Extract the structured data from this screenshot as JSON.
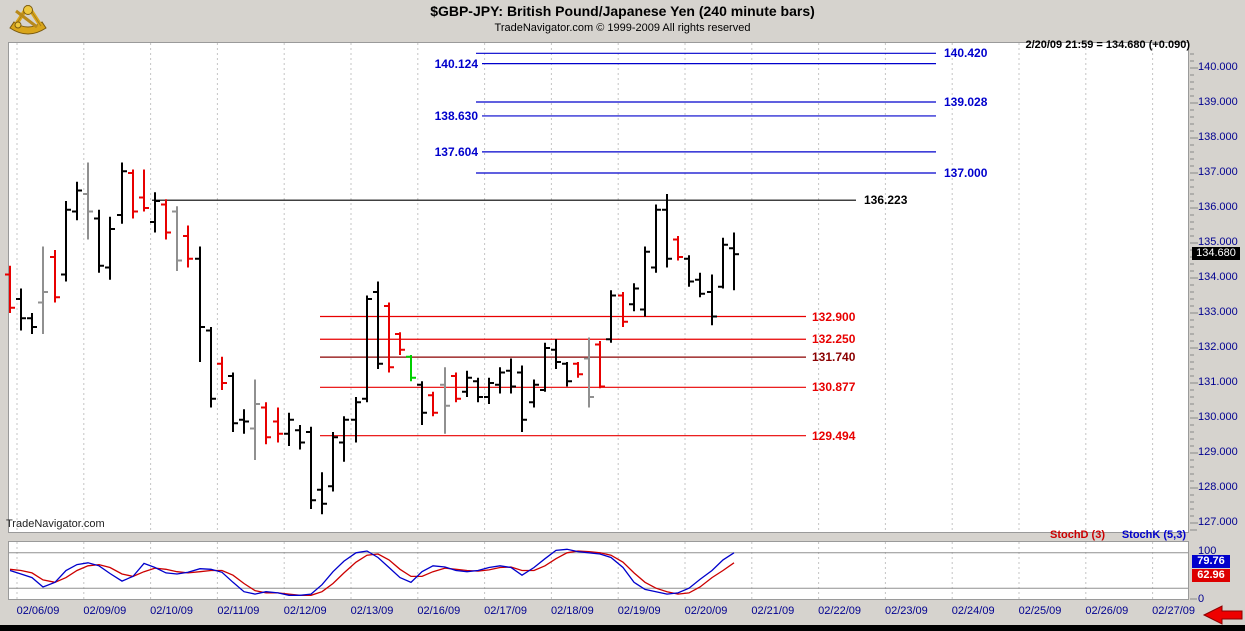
{
  "header": {
    "title": "$GBP-JPY:  British Pound/Japanese Yen  (240 minute bars)",
    "subtitle": "TradeNavigator.com © 1999-2009 All rights reserved",
    "logo_icon": "gold-sextant"
  },
  "quote": {
    "text": "2/20/09 21:59 = 134.680 (+0.090)"
  },
  "watermark": "TradeNavigator.com",
  "price_axis": {
    "labels": [
      "140.000",
      "139.000",
      "138.000",
      "137.000",
      "136.000",
      "135.000",
      "134.000",
      "133.000",
      "132.000",
      "131.000",
      "130.000",
      "129.000",
      "128.000",
      "127.000"
    ],
    "current": "134.680",
    "current_bg": "#000000",
    "text_color": "#000090"
  },
  "date_axis": {
    "labels": [
      "02/06/09",
      "02/09/09",
      "02/10/09",
      "02/11/09",
      "02/12/09",
      "02/13/09",
      "02/16/09",
      "02/17/09",
      "02/18/09",
      "02/19/09",
      "02/20/09",
      "02/21/09",
      "02/22/09",
      "02/23/09",
      "02/24/09",
      "02/25/09",
      "02/26/09",
      "02/27/09"
    ]
  },
  "stoch": {
    "d_label": "StochD (3)",
    "k_label": "StochK (5,3)",
    "scale_top": "100",
    "scale_bottom": "0",
    "k_value": "79.76",
    "d_value": "62.96",
    "k_color": "#0000cc",
    "d_color": "#cc0000",
    "overbought": 80,
    "oversold": 20
  },
  "arrow": {
    "name": "red-left-arrow",
    "color": "#ee0000"
  },
  "chart_data": {
    "type": "ohlc-bars",
    "symbol": "$GBP-JPY",
    "interval": "240 minute",
    "title": "$GBP-JPY: British Pound/Japanese Yen (240 minute bars)",
    "y_range": [
      126.8,
      140.8
    ],
    "y_tick_step": 1.0,
    "y_minor_step": 0.2,
    "grid": "vertical-dashed",
    "last_price": 134.68,
    "last_change": 0.09,
    "last_time": "2/20/09 21:59",
    "levels": [
      {
        "label": "140.420",
        "value": 140.42,
        "color": "#0000cc",
        "x1": 476,
        "x2": 936,
        "lx": 944,
        "align": "left"
      },
      {
        "label": "140.124",
        "value": 140.124,
        "color": "#0000cc",
        "x1": 482,
        "x2": 936,
        "lx": 478,
        "align": "right"
      },
      {
        "label": "139.028",
        "value": 139.028,
        "color": "#0000cc",
        "x1": 476,
        "x2": 936,
        "lx": 944,
        "align": "left"
      },
      {
        "label": "138.630",
        "value": 138.63,
        "color": "#0000cc",
        "x1": 482,
        "x2": 936,
        "lx": 478,
        "align": "right"
      },
      {
        "label": "137.604",
        "value": 137.604,
        "color": "#0000cc",
        "x1": 482,
        "x2": 936,
        "lx": 478,
        "align": "right"
      },
      {
        "label": "137.000",
        "value": 137.0,
        "color": "#0000cc",
        "x1": 476,
        "x2": 936,
        "lx": 944,
        "align": "left"
      },
      {
        "label": "136.223",
        "value": 136.223,
        "color": "#000000",
        "x1": 152,
        "x2": 856,
        "lx": 864,
        "align": "left"
      },
      {
        "label": "132.900",
        "value": 132.9,
        "color": "#e80000",
        "x1": 320,
        "x2": 806,
        "lx": 812,
        "align": "left"
      },
      {
        "label": "132.250",
        "value": 132.25,
        "color": "#e80000",
        "x1": 320,
        "x2": 806,
        "lx": 812,
        "align": "left"
      },
      {
        "label": "131.740",
        "value": 131.74,
        "color": "#8b0000",
        "x1": 320,
        "x2": 806,
        "lx": 812,
        "align": "left"
      },
      {
        "label": "130.877",
        "value": 130.877,
        "color": "#e80000",
        "x1": 320,
        "x2": 806,
        "lx": 812,
        "align": "left"
      },
      {
        "label": "129.494",
        "value": 129.494,
        "color": "#e80000",
        "x1": 320,
        "x2": 806,
        "lx": 812,
        "align": "left"
      }
    ],
    "bar_colors": {
      "black": "#000000",
      "red": "#e80000",
      "gray": "#909090",
      "green": "#00cf00"
    },
    "bars": [
      [
        10,
        134.1,
        134.35,
        133.0,
        133.15,
        "red"
      ],
      [
        21,
        133.4,
        133.7,
        132.5,
        132.85,
        "black"
      ],
      [
        32,
        132.85,
        133.0,
        132.4,
        132.6,
        "black"
      ],
      [
        43,
        133.3,
        134.9,
        132.4,
        133.6,
        "gray"
      ],
      [
        55,
        134.6,
        134.8,
        133.3,
        133.45,
        "red"
      ],
      [
        66,
        134.1,
        136.2,
        133.9,
        135.95,
        "black"
      ],
      [
        77,
        135.9,
        136.75,
        135.65,
        136.5,
        "black"
      ],
      [
        88,
        136.4,
        137.3,
        135.1,
        135.9,
        "gray"
      ],
      [
        99,
        135.7,
        135.95,
        134.15,
        134.35,
        "black"
      ],
      [
        110,
        134.3,
        135.75,
        133.95,
        135.4,
        "black"
      ],
      [
        122,
        135.8,
        137.3,
        135.55,
        137.05,
        "black"
      ],
      [
        133,
        137.0,
        137.1,
        135.7,
        135.9,
        "red"
      ],
      [
        144,
        136.3,
        137.1,
        135.9,
        136.0,
        "red"
      ],
      [
        155,
        135.6,
        136.45,
        135.3,
        136.2,
        "black"
      ],
      [
        166,
        136.1,
        136.25,
        135.1,
        135.3,
        "red"
      ],
      [
        177,
        135.9,
        136.05,
        134.2,
        134.5,
        "gray"
      ],
      [
        188,
        135.2,
        135.5,
        134.3,
        134.55,
        "red"
      ],
      [
        200,
        134.55,
        134.9,
        131.6,
        132.6,
        "black"
      ],
      [
        211,
        132.5,
        132.6,
        130.3,
        130.55,
        "black"
      ],
      [
        222,
        131.55,
        131.75,
        130.8,
        131.0,
        "red"
      ],
      [
        233,
        131.2,
        131.3,
        129.6,
        129.85,
        "black"
      ],
      [
        244,
        129.95,
        130.25,
        129.55,
        129.9,
        "black"
      ],
      [
        255,
        129.7,
        131.1,
        128.8,
        130.4,
        "gray"
      ],
      [
        266,
        130.3,
        130.45,
        129.25,
        129.45,
        "red"
      ],
      [
        278,
        129.9,
        130.3,
        129.3,
        129.55,
        "red"
      ],
      [
        289,
        129.55,
        130.15,
        129.2,
        129.95,
        "black"
      ],
      [
        300,
        129.65,
        129.8,
        129.1,
        129.3,
        "black"
      ],
      [
        311,
        129.6,
        129.75,
        127.4,
        127.65,
        "black"
      ],
      [
        322,
        127.95,
        128.45,
        127.25,
        127.55,
        "black"
      ],
      [
        333,
        128.05,
        129.6,
        127.9,
        129.45,
        "black"
      ],
      [
        344,
        129.3,
        130.05,
        128.75,
        129.95,
        "black"
      ],
      [
        356,
        129.95,
        130.6,
        129.3,
        130.45,
        "black"
      ],
      [
        367,
        130.55,
        133.5,
        130.45,
        133.4,
        "black"
      ],
      [
        378,
        133.6,
        133.9,
        131.4,
        131.55,
        "black"
      ],
      [
        389,
        133.2,
        133.3,
        131.3,
        131.45,
        "red"
      ],
      [
        400,
        132.4,
        132.45,
        131.8,
        131.95,
        "red"
      ],
      [
        411,
        131.75,
        131.8,
        131.05,
        131.15,
        "green"
      ],
      [
        422,
        130.95,
        131.05,
        129.8,
        130.15,
        "black"
      ],
      [
        433,
        130.65,
        130.75,
        130.05,
        130.15,
        "red"
      ],
      [
        445,
        130.95,
        131.45,
        129.55,
        130.35,
        "gray"
      ],
      [
        456,
        131.2,
        131.3,
        130.45,
        130.55,
        "red"
      ],
      [
        467,
        130.75,
        131.35,
        130.6,
        131.15,
        "black"
      ],
      [
        478,
        131.05,
        131.15,
        130.45,
        130.6,
        "black"
      ],
      [
        489,
        130.6,
        131.15,
        130.4,
        131.0,
        "black"
      ],
      [
        500,
        130.95,
        131.45,
        130.7,
        131.3,
        "black"
      ],
      [
        511,
        131.35,
        131.7,
        130.7,
        130.9,
        "black"
      ],
      [
        522,
        131.3,
        131.5,
        129.6,
        129.95,
        "black"
      ],
      [
        534,
        130.45,
        131.1,
        130.3,
        130.95,
        "black"
      ],
      [
        545,
        130.8,
        132.15,
        130.75,
        132.0,
        "black"
      ],
      [
        556,
        131.95,
        132.25,
        131.4,
        131.6,
        "black"
      ],
      [
        567,
        131.55,
        131.6,
        130.9,
        131.05,
        "black"
      ],
      [
        578,
        131.55,
        131.6,
        131.15,
        131.25,
        "red"
      ],
      [
        589,
        131.7,
        132.3,
        130.3,
        130.6,
        "gray"
      ],
      [
        600,
        132.1,
        132.2,
        130.85,
        130.9,
        "red"
      ],
      [
        611,
        132.25,
        133.65,
        132.15,
        133.5,
        "black"
      ],
      [
        623,
        133.5,
        133.6,
        132.6,
        132.75,
        "red"
      ],
      [
        634,
        133.25,
        133.85,
        133.05,
        133.7,
        "black"
      ],
      [
        645,
        133.1,
        134.9,
        132.9,
        134.75,
        "black"
      ],
      [
        656,
        134.3,
        136.1,
        134.15,
        135.95,
        "black"
      ],
      [
        667,
        135.95,
        136.4,
        134.3,
        134.55,
        "black"
      ],
      [
        678,
        135.1,
        135.2,
        134.5,
        134.6,
        "red"
      ],
      [
        689,
        134.55,
        134.65,
        133.75,
        133.9,
        "black"
      ],
      [
        700,
        133.95,
        134.15,
        133.45,
        133.55,
        "black"
      ],
      [
        712,
        133.6,
        134.1,
        132.65,
        132.9,
        "black"
      ],
      [
        723,
        133.75,
        135.15,
        133.7,
        134.95,
        "black"
      ],
      [
        734,
        134.85,
        135.3,
        133.65,
        134.68,
        "black"
      ]
    ],
    "stochastic": {
      "k_points": [
        [
          10,
          50
        ],
        [
          21,
          44
        ],
        [
          32,
          38
        ],
        [
          43,
          22
        ],
        [
          55,
          30
        ],
        [
          66,
          50
        ],
        [
          77,
          60
        ],
        [
          88,
          63
        ],
        [
          99,
          58
        ],
        [
          110,
          45
        ],
        [
          122,
          32
        ],
        [
          133,
          40
        ],
        [
          144,
          62
        ],
        [
          155,
          55
        ],
        [
          166,
          46
        ],
        [
          177,
          44
        ],
        [
          188,
          47
        ],
        [
          200,
          53
        ],
        [
          211,
          52
        ],
        [
          222,
          47
        ],
        [
          233,
          30
        ],
        [
          244,
          14
        ],
        [
          255,
          10
        ],
        [
          266,
          14
        ],
        [
          278,
          12
        ],
        [
          289,
          8
        ],
        [
          300,
          8
        ],
        [
          311,
          10
        ],
        [
          322,
          26
        ],
        [
          333,
          48
        ],
        [
          344,
          66
        ],
        [
          356,
          80
        ],
        [
          367,
          83
        ],
        [
          378,
          72
        ],
        [
          389,
          55
        ],
        [
          400,
          38
        ],
        [
          411,
          30
        ],
        [
          422,
          48
        ],
        [
          433,
          58
        ],
        [
          445,
          56
        ],
        [
          456,
          50
        ],
        [
          467,
          48
        ],
        [
          478,
          50
        ],
        [
          489,
          55
        ],
        [
          500,
          58
        ],
        [
          511,
          55
        ],
        [
          522,
          42
        ],
        [
          534,
          55
        ],
        [
          545,
          70
        ],
        [
          556,
          84
        ],
        [
          567,
          86
        ],
        [
          578,
          82
        ],
        [
          589,
          80
        ],
        [
          600,
          78
        ],
        [
          611,
          72
        ],
        [
          623,
          55
        ],
        [
          634,
          30
        ],
        [
          645,
          18
        ],
        [
          656,
          14
        ],
        [
          667,
          10
        ],
        [
          678,
          12
        ],
        [
          689,
          20
        ],
        [
          700,
          35
        ],
        [
          712,
          50
        ],
        [
          723,
          68
        ],
        [
          734,
          80
        ]
      ],
      "d_points": [
        [
          10,
          52
        ],
        [
          21,
          50
        ],
        [
          32,
          46
        ],
        [
          43,
          34
        ],
        [
          55,
          30
        ],
        [
          66,
          38
        ],
        [
          77,
          50
        ],
        [
          88,
          58
        ],
        [
          99,
          60
        ],
        [
          110,
          55
        ],
        [
          122,
          44
        ],
        [
          133,
          40
        ],
        [
          144,
          48
        ],
        [
          155,
          54
        ],
        [
          166,
          52
        ],
        [
          177,
          48
        ],
        [
          188,
          46
        ],
        [
          200,
          48
        ],
        [
          211,
          50
        ],
        [
          222,
          50
        ],
        [
          233,
          42
        ],
        [
          244,
          28
        ],
        [
          255,
          16
        ],
        [
          266,
          12
        ],
        [
          278,
          12
        ],
        [
          289,
          10
        ],
        [
          300,
          8
        ],
        [
          311,
          8
        ],
        [
          322,
          14
        ],
        [
          333,
          28
        ],
        [
          344,
          46
        ],
        [
          356,
          64
        ],
        [
          367,
          76
        ],
        [
          378,
          78
        ],
        [
          389,
          68
        ],
        [
          400,
          52
        ],
        [
          411,
          40
        ],
        [
          422,
          40
        ],
        [
          433,
          48
        ],
        [
          445,
          54
        ],
        [
          456,
          52
        ],
        [
          467,
          50
        ],
        [
          478,
          49
        ],
        [
          489,
          51
        ],
        [
          500,
          55
        ],
        [
          511,
          56
        ],
        [
          522,
          50
        ],
        [
          534,
          50
        ],
        [
          545,
          58
        ],
        [
          556,
          70
        ],
        [
          567,
          80
        ],
        [
          578,
          83
        ],
        [
          589,
          82
        ],
        [
          600,
          80
        ],
        [
          611,
          76
        ],
        [
          623,
          64
        ],
        [
          634,
          46
        ],
        [
          645,
          30
        ],
        [
          656,
          20
        ],
        [
          667,
          14
        ],
        [
          678,
          10
        ],
        [
          689,
          12
        ],
        [
          700,
          22
        ],
        [
          712,
          38
        ],
        [
          723,
          50
        ],
        [
          734,
          63
        ]
      ]
    }
  }
}
